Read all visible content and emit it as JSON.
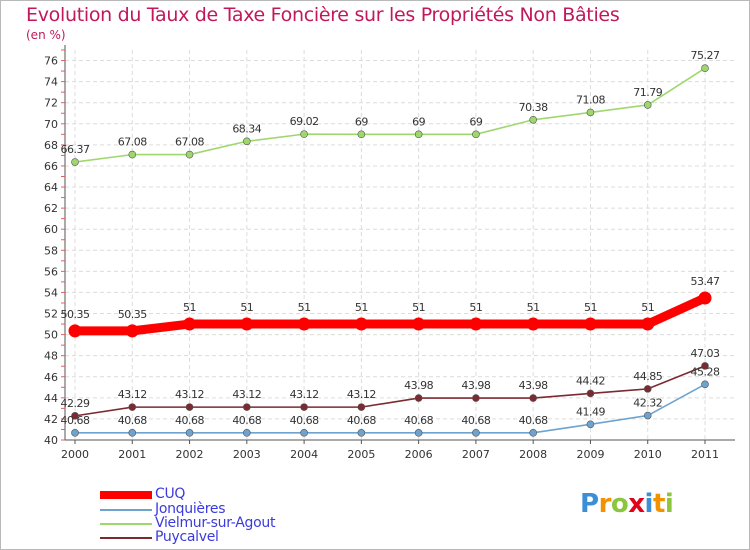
{
  "title": "Evolution du Taux de Taxe Foncière sur les Propriétés Non Bâties",
  "unit_label": "(en %)",
  "brand": {
    "letters": [
      "P",
      "r",
      "o",
      "x",
      "i",
      "t",
      "i"
    ],
    "colors": [
      "#3b8fd6",
      "#f39200",
      "#8cc63f",
      "#e2001a",
      "#3b8fd6",
      "#f39200",
      "#8cc63f"
    ]
  },
  "chart_data": {
    "type": "line",
    "title": "Evolution du Taux de Taxe Foncière sur les Propriétés Non Bâties",
    "xlabel": "",
    "ylabel": "(en %)",
    "ylim": [
      40,
      77
    ],
    "yticks": [
      40,
      42,
      44,
      46,
      48,
      50,
      52,
      54,
      56,
      58,
      60,
      62,
      64,
      66,
      68,
      70,
      72,
      74,
      76
    ],
    "categories": [
      "2000",
      "2001",
      "2002",
      "2003",
      "2004",
      "2005",
      "2006",
      "2007",
      "2008",
      "2009",
      "2010",
      "2011"
    ],
    "grid": true,
    "legend_position": "bottom-left",
    "series": [
      {
        "name": "CUQ",
        "color": "#ff0000",
        "values": [
          50.35,
          50.35,
          51,
          51,
          51,
          51,
          51,
          51,
          51,
          51,
          51,
          53.47
        ],
        "labels": [
          "50.35",
          "50.35",
          "51",
          "51",
          "51",
          "51",
          "51",
          "51",
          "51",
          "51",
          "51",
          "53.47"
        ]
      },
      {
        "name": "Jonquières",
        "color": "#6fa3cf",
        "values": [
          40.68,
          40.68,
          40.68,
          40.68,
          40.68,
          40.68,
          40.68,
          40.68,
          40.68,
          41.49,
          42.32,
          45.28
        ],
        "labels": [
          "40.68",
          "40.68",
          "40.68",
          "40.68",
          "40.68",
          "40.68",
          "40.68",
          "40.68",
          "40.68",
          "41.49",
          "42.32",
          "45.28"
        ]
      },
      {
        "name": "Vielmur-sur-Agout",
        "color": "#9ed86d",
        "values": [
          66.37,
          67.08,
          67.08,
          68.34,
          69.02,
          69,
          69,
          69,
          70.38,
          71.08,
          71.79,
          75.27
        ],
        "labels": [
          "66.37",
          "67.08",
          "67.08",
          "68.34",
          "69.02",
          "69",
          "69",
          "69",
          "70.38",
          "71.08",
          "71.79",
          "75.27"
        ]
      },
      {
        "name": "Puycalvel",
        "color": "#7b2a32",
        "values": [
          42.29,
          43.12,
          43.12,
          43.12,
          43.12,
          43.12,
          43.98,
          43.98,
          43.98,
          44.42,
          44.85,
          47.03
        ],
        "labels": [
          "42.29",
          "43.12",
          "43.12",
          "43.12",
          "43.12",
          "43.12",
          "43.98",
          "43.98",
          "43.98",
          "44.42",
          "44.85",
          "47.03"
        ]
      }
    ]
  }
}
